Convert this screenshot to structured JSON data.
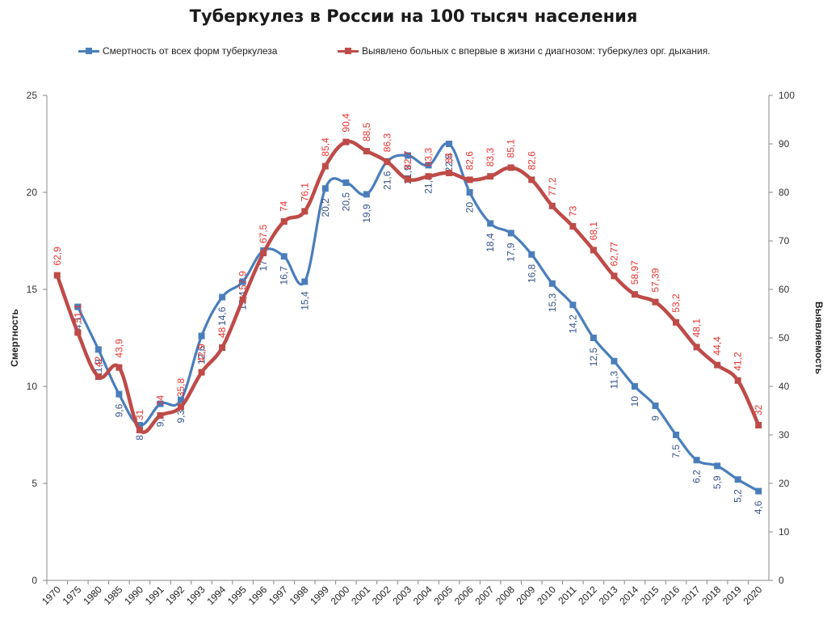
{
  "chart_data": {
    "type": "line",
    "title": "Туберкулез в России на 100 тысяч населения",
    "categories": [
      "1970",
      "1975",
      "1980",
      "1985",
      "1990",
      "1991",
      "1992",
      "1993",
      "1994",
      "1995",
      "1996",
      "1997",
      "1998",
      "1999",
      "2000",
      "2001",
      "2002",
      "2003",
      "2004",
      "2005",
      "2006",
      "2007",
      "2008",
      "2009",
      "2010",
      "2011",
      "2012",
      "2013",
      "2014",
      "2015",
      "2016",
      "2017",
      "2018",
      "2019",
      "2020"
    ],
    "y_left": {
      "label": "Смертность",
      "ylim": [
        0,
        25
      ],
      "ticks": [
        "0",
        "5",
        "10",
        "15",
        "20",
        "25"
      ]
    },
    "y_right": {
      "label": "Выявляемость",
      "ylim": [
        0,
        100
      ],
      "ticks": [
        "0",
        "10",
        "20",
        "30",
        "40",
        "50",
        "60",
        "70",
        "80",
        "90",
        "100"
      ]
    },
    "grid": false,
    "legend_position": "top",
    "series": [
      {
        "name": "Смертность от всех форм туберкулеза",
        "axis": "left",
        "color": "#4a7ebb",
        "values": [
          null,
          14.1,
          11.9,
          9.6,
          8,
          9.1,
          9.3,
          12.6,
          14.6,
          15.4,
          17,
          16.7,
          15.4,
          20.2,
          20.5,
          19.9,
          21.6,
          21.9,
          21.4,
          22.5,
          20,
          18.4,
          17.9,
          16.8,
          15.3,
          14.2,
          12.5,
          11.3,
          10,
          9,
          7.5,
          6.2,
          5.9,
          5.2,
          4.6
        ],
        "labels": [
          "",
          "14,1",
          "11,9",
          "9,6",
          "8",
          "9,1",
          "9,3",
          "12,6",
          "14,6",
          "15,4",
          "17",
          "16,7",
          "15,4",
          "20,2",
          "20,5",
          "19,9",
          "21,6",
          "21,9",
          "21,4",
          "22,5",
          "20",
          "18,4",
          "17,9",
          "16,8",
          "15,3",
          "14,2",
          "12,5",
          "11,3",
          "10",
          "9",
          "7,5",
          "6,2",
          "5,9",
          "5,2",
          "4,6"
        ]
      },
      {
        "name": "Выявлено больных с впервые в жизни с диагнозом: туберкулез орг. дыхания.",
        "axis": "right",
        "color": "#be4b48",
        "values": [
          62.9,
          51.1,
          42,
          43.9,
          31,
          34,
          35.8,
          42.9,
          48,
          57.9,
          67.5,
          74,
          76.1,
          85.4,
          90.4,
          88.5,
          86.3,
          82.7,
          83.3,
          84,
          82.6,
          83.3,
          85.1,
          82.6,
          77.2,
          73,
          68.1,
          62.77,
          58.97,
          57.39,
          53.2,
          48.1,
          44.4,
          41.2,
          32
        ],
        "labels": [
          "62,9",
          "51,1",
          "42",
          "43,9",
          "31",
          "34",
          "35,8",
          "42,9",
          "48",
          "57,9",
          "67,5",
          "74",
          "76,1",
          "85,4",
          "90,4",
          "88,5",
          "86,3",
          "82,7",
          "83,3",
          "84",
          "82,6",
          "83,3",
          "85,1",
          "82,6",
          "77,2",
          "73",
          "68,1",
          "62,77",
          "58,97",
          "57,39",
          "53,2",
          "48,1",
          "44,4",
          "41,2",
          "32"
        ]
      }
    ]
  }
}
